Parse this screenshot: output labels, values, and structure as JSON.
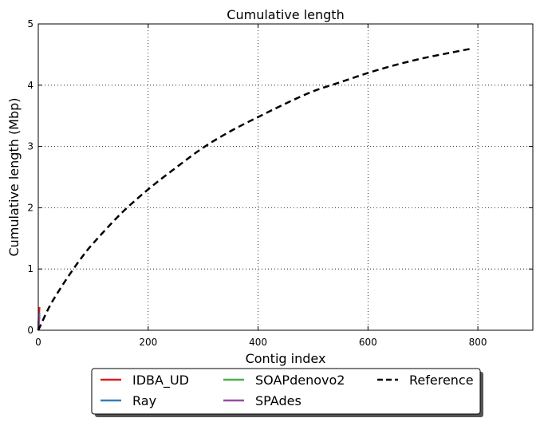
{
  "chart_data": {
    "type": "line",
    "title": "Cumulative length",
    "xlabel": "Contig index",
    "ylabel": "Cumulative length (Mbp)",
    "xlim": [
      0,
      900
    ],
    "ylim": [
      0,
      5
    ],
    "xticks": [
      0,
      200,
      400,
      600,
      800
    ],
    "yticks": [
      0,
      1,
      2,
      3,
      4,
      5
    ],
    "grid": true,
    "legend_placement": "bottom-center",
    "series": [
      {
        "name": "IDBA_UD",
        "color": "#e41a1c",
        "style": "solid",
        "x": [
          0,
          1,
          2
        ],
        "y": [
          0,
          0.2,
          0.38
        ]
      },
      {
        "name": "Ray",
        "color": "#377eb8",
        "style": "solid",
        "x": [
          0,
          1,
          2
        ],
        "y": [
          0,
          0.15,
          0.28
        ]
      },
      {
        "name": "SOAPdenovo2",
        "color": "#4daf4a",
        "style": "solid",
        "x": [
          0,
          1,
          2
        ],
        "y": [
          0,
          0.12,
          0.22
        ]
      },
      {
        "name": "SPAdes",
        "color": "#984ea3",
        "style": "solid",
        "x": [
          0,
          1,
          2
        ],
        "y": [
          0,
          0.14,
          0.25
        ]
      },
      {
        "name": "Reference",
        "color": "#000000",
        "style": "dashed",
        "x": [
          0,
          20,
          40,
          60,
          80,
          100,
          150,
          200,
          250,
          300,
          350,
          400,
          450,
          500,
          550,
          600,
          650,
          700,
          750,
          790
        ],
        "y": [
          0,
          0.38,
          0.68,
          0.95,
          1.2,
          1.42,
          1.9,
          2.3,
          2.65,
          2.98,
          3.25,
          3.48,
          3.7,
          3.9,
          4.05,
          4.2,
          4.33,
          4.44,
          4.53,
          4.6
        ]
      }
    ]
  }
}
